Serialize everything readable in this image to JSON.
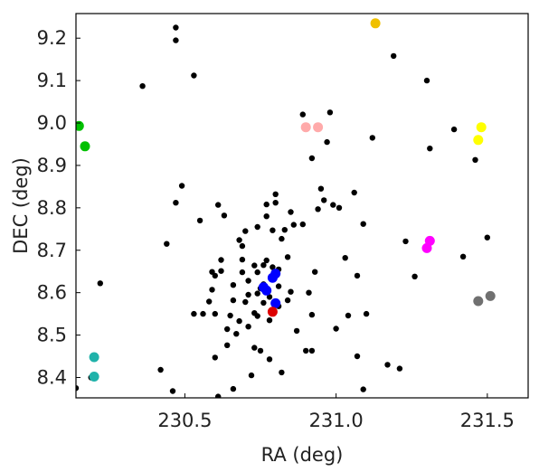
{
  "chart_data": {
    "type": "scatter",
    "title": "",
    "xlabel": "RA (deg)",
    "ylabel": "DEC (deg)",
    "xlim": [
      230.14,
      231.635
    ],
    "ylim": [
      8.352,
      9.258
    ],
    "xticks": [
      230.5,
      231.0,
      231.5
    ],
    "xtick_labels": [
      "230.5",
      "231.0",
      "231.5"
    ],
    "yticks": [
      8.4,
      8.5,
      8.6,
      8.7,
      8.8,
      8.9,
      9.0,
      9.1,
      9.2
    ],
    "ytick_labels": [
      "8.4",
      "8.5",
      "8.6",
      "8.7",
      "8.8",
      "8.9",
      "9.0",
      "9.1",
      "9.2"
    ],
    "grid": false,
    "legend": "none",
    "series": [
      {
        "color": "#000000",
        "marker_size": "small",
        "points": [
          [
            230.14,
            8.375
          ],
          [
            230.19,
            8.4
          ],
          [
            230.22,
            8.622
          ],
          [
            230.36,
            9.087
          ],
          [
            230.42,
            8.418
          ],
          [
            230.44,
            8.715
          ],
          [
            230.46,
            8.368
          ],
          [
            230.47,
            9.195
          ],
          [
            230.47,
            9.225
          ],
          [
            230.47,
            8.812
          ],
          [
            230.49,
            8.852
          ],
          [
            230.53,
            9.112
          ],
          [
            230.53,
            8.55
          ],
          [
            230.55,
            8.77
          ],
          [
            230.56,
            8.55
          ],
          [
            230.58,
            8.579
          ],
          [
            230.59,
            8.649
          ],
          [
            230.59,
            8.607
          ],
          [
            230.6,
            8.55
          ],
          [
            230.6,
            8.447
          ],
          [
            230.6,
            8.64
          ],
          [
            230.61,
            8.355
          ],
          [
            230.61,
            8.807
          ],
          [
            230.62,
            8.677
          ],
          [
            230.62,
            8.651
          ],
          [
            230.63,
            8.782
          ],
          [
            230.64,
            8.476
          ],
          [
            230.64,
            8.514
          ],
          [
            230.65,
            8.546
          ],
          [
            230.66,
            8.618
          ],
          [
            230.66,
            8.582
          ],
          [
            230.66,
            8.373
          ],
          [
            230.67,
            8.503
          ],
          [
            230.68,
            8.724
          ],
          [
            230.68,
            8.533
          ],
          [
            230.69,
            8.71
          ],
          [
            230.69,
            8.678
          ],
          [
            230.69,
            8.648
          ],
          [
            230.7,
            8.745
          ],
          [
            230.7,
            8.578
          ],
          [
            230.71,
            8.628
          ],
          [
            230.71,
            8.595
          ],
          [
            230.71,
            8.52
          ],
          [
            230.72,
            8.405
          ],
          [
            230.73,
            8.664
          ],
          [
            230.73,
            8.552
          ],
          [
            230.73,
            8.47
          ],
          [
            230.74,
            8.755
          ],
          [
            230.74,
            8.648
          ],
          [
            230.74,
            8.598
          ],
          [
            230.74,
            8.545
          ],
          [
            230.75,
            8.463
          ],
          [
            230.75,
            8.61
          ],
          [
            230.76,
            8.665
          ],
          [
            230.76,
            8.62
          ],
          [
            230.76,
            8.576
          ],
          [
            230.77,
            8.676
          ],
          [
            230.77,
            8.808
          ],
          [
            230.77,
            8.78
          ],
          [
            230.78,
            8.59
          ],
          [
            230.78,
            8.535
          ],
          [
            230.78,
            8.443
          ],
          [
            230.79,
            8.747
          ],
          [
            230.79,
            8.66
          ],
          [
            230.8,
            8.812
          ],
          [
            230.8,
            8.832
          ],
          [
            230.81,
            8.655
          ],
          [
            230.81,
            8.615
          ],
          [
            230.81,
            8.568
          ],
          [
            230.82,
            8.727
          ],
          [
            230.82,
            8.412
          ],
          [
            230.83,
            8.748
          ],
          [
            230.84,
            8.684
          ],
          [
            230.84,
            8.582
          ],
          [
            230.85,
            8.602
          ],
          [
            230.85,
            8.79
          ],
          [
            230.86,
            8.76
          ],
          [
            230.87,
            8.51
          ],
          [
            230.89,
            9.02
          ],
          [
            230.89,
            8.761
          ],
          [
            230.9,
            8.463
          ],
          [
            230.91,
            8.6
          ],
          [
            230.92,
            8.917
          ],
          [
            230.92,
            8.548
          ],
          [
            230.92,
            8.463
          ],
          [
            230.93,
            8.649
          ],
          [
            230.94,
            8.797
          ],
          [
            230.95,
            8.845
          ],
          [
            230.96,
            8.818
          ],
          [
            230.97,
            8.955
          ],
          [
            230.98,
            9.025
          ],
          [
            230.99,
            8.807
          ],
          [
            231.0,
            8.515
          ],
          [
            231.01,
            8.8
          ],
          [
            231.03,
            8.682
          ],
          [
            231.04,
            8.546
          ],
          [
            231.06,
            8.836
          ],
          [
            231.07,
            8.64
          ],
          [
            231.07,
            8.45
          ],
          [
            231.09,
            8.762
          ],
          [
            231.09,
            8.372
          ],
          [
            231.1,
            8.55
          ],
          [
            231.12,
            8.965
          ],
          [
            231.17,
            8.43
          ],
          [
            231.19,
            9.158
          ],
          [
            231.21,
            8.421
          ],
          [
            231.23,
            8.721
          ],
          [
            231.26,
            8.638
          ],
          [
            231.3,
            9.1
          ],
          [
            231.31,
            8.94
          ],
          [
            231.39,
            8.985
          ],
          [
            231.42,
            8.685
          ],
          [
            231.46,
            8.913
          ],
          [
            231.5,
            8.73
          ]
        ]
      },
      {
        "color": "#00c000",
        "marker_size": "large",
        "points": [
          [
            230.15,
            8.993
          ],
          [
            230.17,
            8.945
          ]
        ]
      },
      {
        "color": "#20b2aa",
        "marker_size": "large",
        "points": [
          [
            230.2,
            8.448
          ],
          [
            230.2,
            8.402
          ]
        ]
      },
      {
        "color": "#f0c000",
        "marker_size": "large",
        "points": [
          [
            231.13,
            9.235
          ]
        ]
      },
      {
        "color": "#ffaaaa",
        "marker_size": "large",
        "points": [
          [
            230.9,
            8.99
          ],
          [
            230.94,
            8.99
          ]
        ]
      },
      {
        "color": "#ffff00",
        "marker_size": "large",
        "points": [
          [
            231.48,
            8.99
          ],
          [
            231.47,
            8.96
          ]
        ]
      },
      {
        "color": "#ff00ff",
        "marker_size": "large",
        "points": [
          [
            231.31,
            8.722
          ],
          [
            231.3,
            8.705
          ]
        ]
      },
      {
        "color": "#707070",
        "marker_size": "large",
        "points": [
          [
            231.47,
            8.58
          ],
          [
            231.51,
            8.592
          ]
        ]
      },
      {
        "color": "#0000ff",
        "marker_size": "large",
        "points": [
          [
            230.76,
            8.613
          ],
          [
            230.77,
            8.605
          ],
          [
            230.79,
            8.635
          ],
          [
            230.8,
            8.645
          ],
          [
            230.8,
            8.575
          ]
        ]
      },
      {
        "color": "#dd0000",
        "marker_size": "large",
        "points": [
          [
            230.79,
            8.555
          ]
        ]
      }
    ]
  }
}
